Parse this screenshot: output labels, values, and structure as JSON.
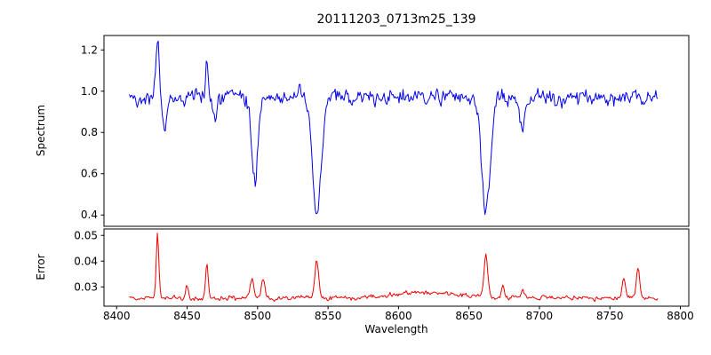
{
  "chart_data": {
    "type": "line",
    "title": "20111203_0713m25_139",
    "xlabel": "Wavelength",
    "xlim": [
      8391,
      8806
    ],
    "x_range": [
      8409,
      8784
    ],
    "xticks": [
      "8400",
      "8450",
      "8500",
      "8550",
      "8600",
      "8650",
      "8700",
      "8750",
      "8800"
    ],
    "grid": false,
    "legend": "none",
    "panels": [
      {
        "name": "spectrum",
        "ylabel": "Spectrum",
        "color": "#0000ee",
        "ylim": [
          0.345,
          1.27
        ],
        "yticks": [
          "0.4",
          "0.6",
          "0.8",
          "1.0",
          "1.2"
        ],
        "baseline": 0.97,
        "noise_std": 0.03,
        "features": [
          {
            "kind": "emission",
            "center": 8429,
            "amplitude": 0.26,
            "sigma": 1.2
          },
          {
            "kind": "absorption",
            "center": 8434,
            "amplitude": 0.16,
            "sigma": 1.5
          },
          {
            "kind": "emission",
            "center": 8464,
            "amplitude": 0.17,
            "sigma": 1.0
          },
          {
            "kind": "absorption",
            "center": 8470,
            "amplitude": 0.1,
            "sigma": 1.2
          },
          {
            "kind": "absorption",
            "center": 8498,
            "amplitude": 0.4,
            "sigma": 2.2
          },
          {
            "kind": "absorption",
            "center": 8542,
            "amplitude": 0.58,
            "sigma": 3.0
          },
          {
            "kind": "absorption",
            "center": 8662,
            "amplitude": 0.58,
            "sigma": 3.0
          },
          {
            "kind": "absorption",
            "center": 8688,
            "amplitude": 0.17,
            "sigma": 1.5
          }
        ]
      },
      {
        "name": "error",
        "ylabel": "Error",
        "color": "#ee0000",
        "ylim": [
          0.0225,
          0.0525
        ],
        "yticks": [
          "0.03",
          "0.04",
          "0.05"
        ],
        "baseline": 0.0257,
        "noise_std": 0.0007,
        "features": [
          {
            "kind": "emission",
            "center": 8429,
            "amplitude": 0.025,
            "sigma": 0.9
          },
          {
            "kind": "emission",
            "center": 8450,
            "amplitude": 0.0045,
            "sigma": 0.9
          },
          {
            "kind": "emission",
            "center": 8464,
            "amplitude": 0.013,
            "sigma": 0.9
          },
          {
            "kind": "emission",
            "center": 8496,
            "amplitude": 0.0075,
            "sigma": 1.3
          },
          {
            "kind": "emission",
            "center": 8504,
            "amplitude": 0.007,
            "sigma": 1.2
          },
          {
            "kind": "emission",
            "center": 8542,
            "amplitude": 0.014,
            "sigma": 1.4
          },
          {
            "kind": "emission",
            "center": 8620,
            "amplitude": 0.0022,
            "sigma": 22
          },
          {
            "kind": "emission",
            "center": 8662,
            "amplitude": 0.0165,
            "sigma": 1.3
          },
          {
            "kind": "emission",
            "center": 8674,
            "amplitude": 0.0045,
            "sigma": 1.0
          },
          {
            "kind": "emission",
            "center": 8688,
            "amplitude": 0.0035,
            "sigma": 1.0
          },
          {
            "kind": "emission",
            "center": 8760,
            "amplitude": 0.0075,
            "sigma": 1.2
          },
          {
            "kind": "emission",
            "center": 8770,
            "amplitude": 0.0115,
            "sigma": 1.2
          }
        ]
      }
    ]
  }
}
